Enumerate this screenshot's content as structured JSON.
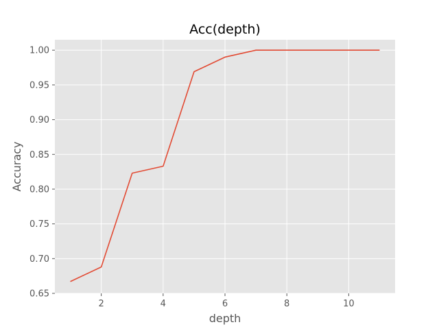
{
  "chart_data": {
    "type": "line",
    "title": "Acc(depth)",
    "xlabel": "depth",
    "ylabel": "Accuracy",
    "xlim": [
      0.5,
      11.5
    ],
    "ylim": [
      0.65,
      1.015
    ],
    "xticks": [
      2,
      4,
      6,
      8,
      10
    ],
    "yticks": [
      0.65,
      0.7,
      0.75,
      0.8,
      0.85,
      0.9,
      0.95,
      1.0
    ],
    "grid": true,
    "series": [
      {
        "color": "#E24A33",
        "x": [
          1,
          2,
          3,
          4,
          5,
          6,
          7,
          8,
          9,
          10,
          11
        ],
        "y": [
          0.667,
          0.688,
          0.823,
          0.833,
          0.969,
          0.99,
          1.0,
          1.0,
          1.0,
          1.0,
          1.0
        ]
      }
    ]
  }
}
